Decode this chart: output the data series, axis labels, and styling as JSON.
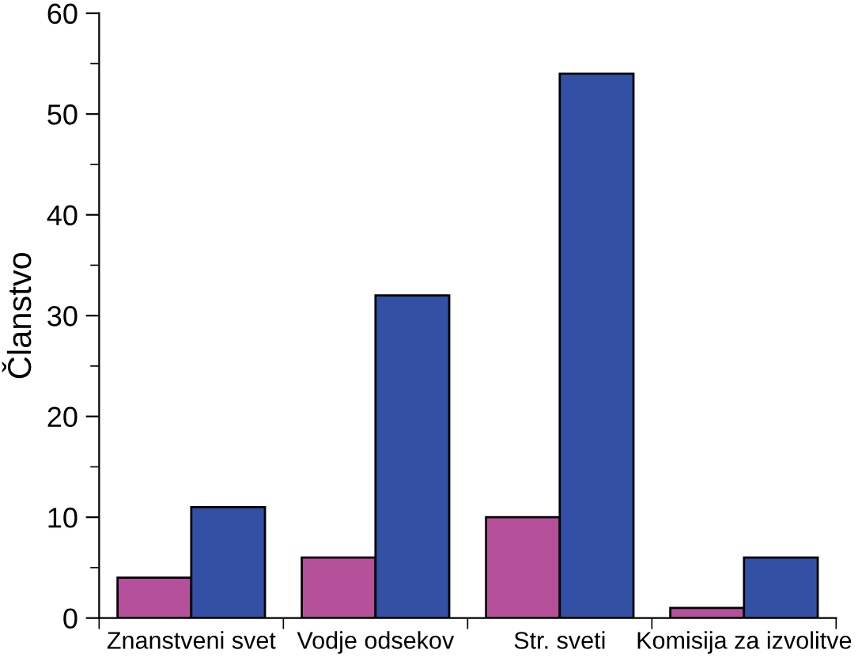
{
  "chart_data": {
    "type": "bar",
    "ylabel": "Članstvo",
    "categories": [
      "Znanstveni svet",
      "Vodje odsekov",
      "Str. sveti",
      "Komisija za izvolitve"
    ],
    "series": [
      {
        "color": "#b5519b",
        "values": [
          4,
          6,
          10,
          1
        ]
      },
      {
        "color": "#3350a5",
        "values": [
          11,
          32,
          54,
          6
        ]
      }
    ],
    "ylim": [
      0,
      60
    ],
    "yticks": [
      0,
      10,
      20,
      30,
      40,
      50,
      60
    ]
  }
}
